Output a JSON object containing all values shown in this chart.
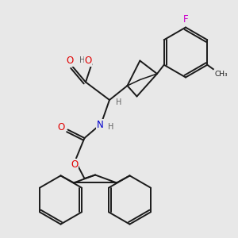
{
  "background_color": "#e8e8e8",
  "atom_colors": {
    "O": "#e00000",
    "N": "#0000cc",
    "F": "#cc00cc",
    "C": "#1a1a1a",
    "H": "#606060"
  },
  "bond_color": "#1a1a1a",
  "lw": 1.4,
  "xlim": [
    0,
    10
  ],
  "ylim": [
    0,
    10
  ]
}
